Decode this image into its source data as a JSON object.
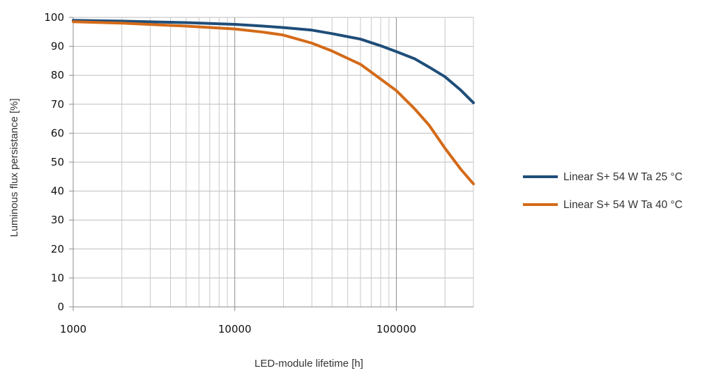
{
  "chart_data": {
    "type": "line",
    "title": "",
    "xlabel": "LED-module lifetime [h]",
    "ylabel": "Luminous flux persistance [%]",
    "x_scale": "log",
    "xlim": [
      1000,
      300000
    ],
    "ylim": [
      0,
      100
    ],
    "x_ticks": [
      1000,
      10000,
      100000
    ],
    "x_tick_labels": [
      "1000",
      "10000",
      "100000"
    ],
    "y_ticks": [
      0,
      10,
      20,
      30,
      40,
      50,
      60,
      70,
      80,
      90,
      100
    ],
    "grid": true,
    "legend_position": "right",
    "series": [
      {
        "name": "Linear S+ 54 W Ta 25 °C",
        "color": "#1f4e79",
        "points": [
          [
            1000,
            99
          ],
          [
            2000,
            98.7
          ],
          [
            5000,
            98.2
          ],
          [
            10000,
            97.6
          ],
          [
            15000,
            97.0
          ],
          [
            20000,
            96.5
          ],
          [
            30000,
            95.6
          ],
          [
            40000,
            94.4
          ],
          [
            60000,
            92.5
          ],
          [
            80000,
            90.2
          ],
          [
            100000,
            88.2
          ],
          [
            130000,
            85.7
          ],
          [
            160000,
            82.8
          ],
          [
            200000,
            79.5
          ],
          [
            250000,
            74.9
          ],
          [
            300000,
            70.5
          ]
        ]
      },
      {
        "name": "Linear S+ 54 W Ta 40 °C",
        "color": "#d46a18",
        "points": [
          [
            1000,
            98.5
          ],
          [
            2000,
            98.0
          ],
          [
            5000,
            97.0
          ],
          [
            10000,
            96.0
          ],
          [
            15000,
            94.9
          ],
          [
            20000,
            93.9
          ],
          [
            30000,
            91.1
          ],
          [
            40000,
            88.4
          ],
          [
            60000,
            83.8
          ],
          [
            80000,
            78.7
          ],
          [
            100000,
            74.7
          ],
          [
            130000,
            68.4
          ],
          [
            160000,
            62.7
          ],
          [
            200000,
            54.8
          ],
          [
            250000,
            47.6
          ],
          [
            300000,
            42.5
          ]
        ]
      }
    ]
  }
}
